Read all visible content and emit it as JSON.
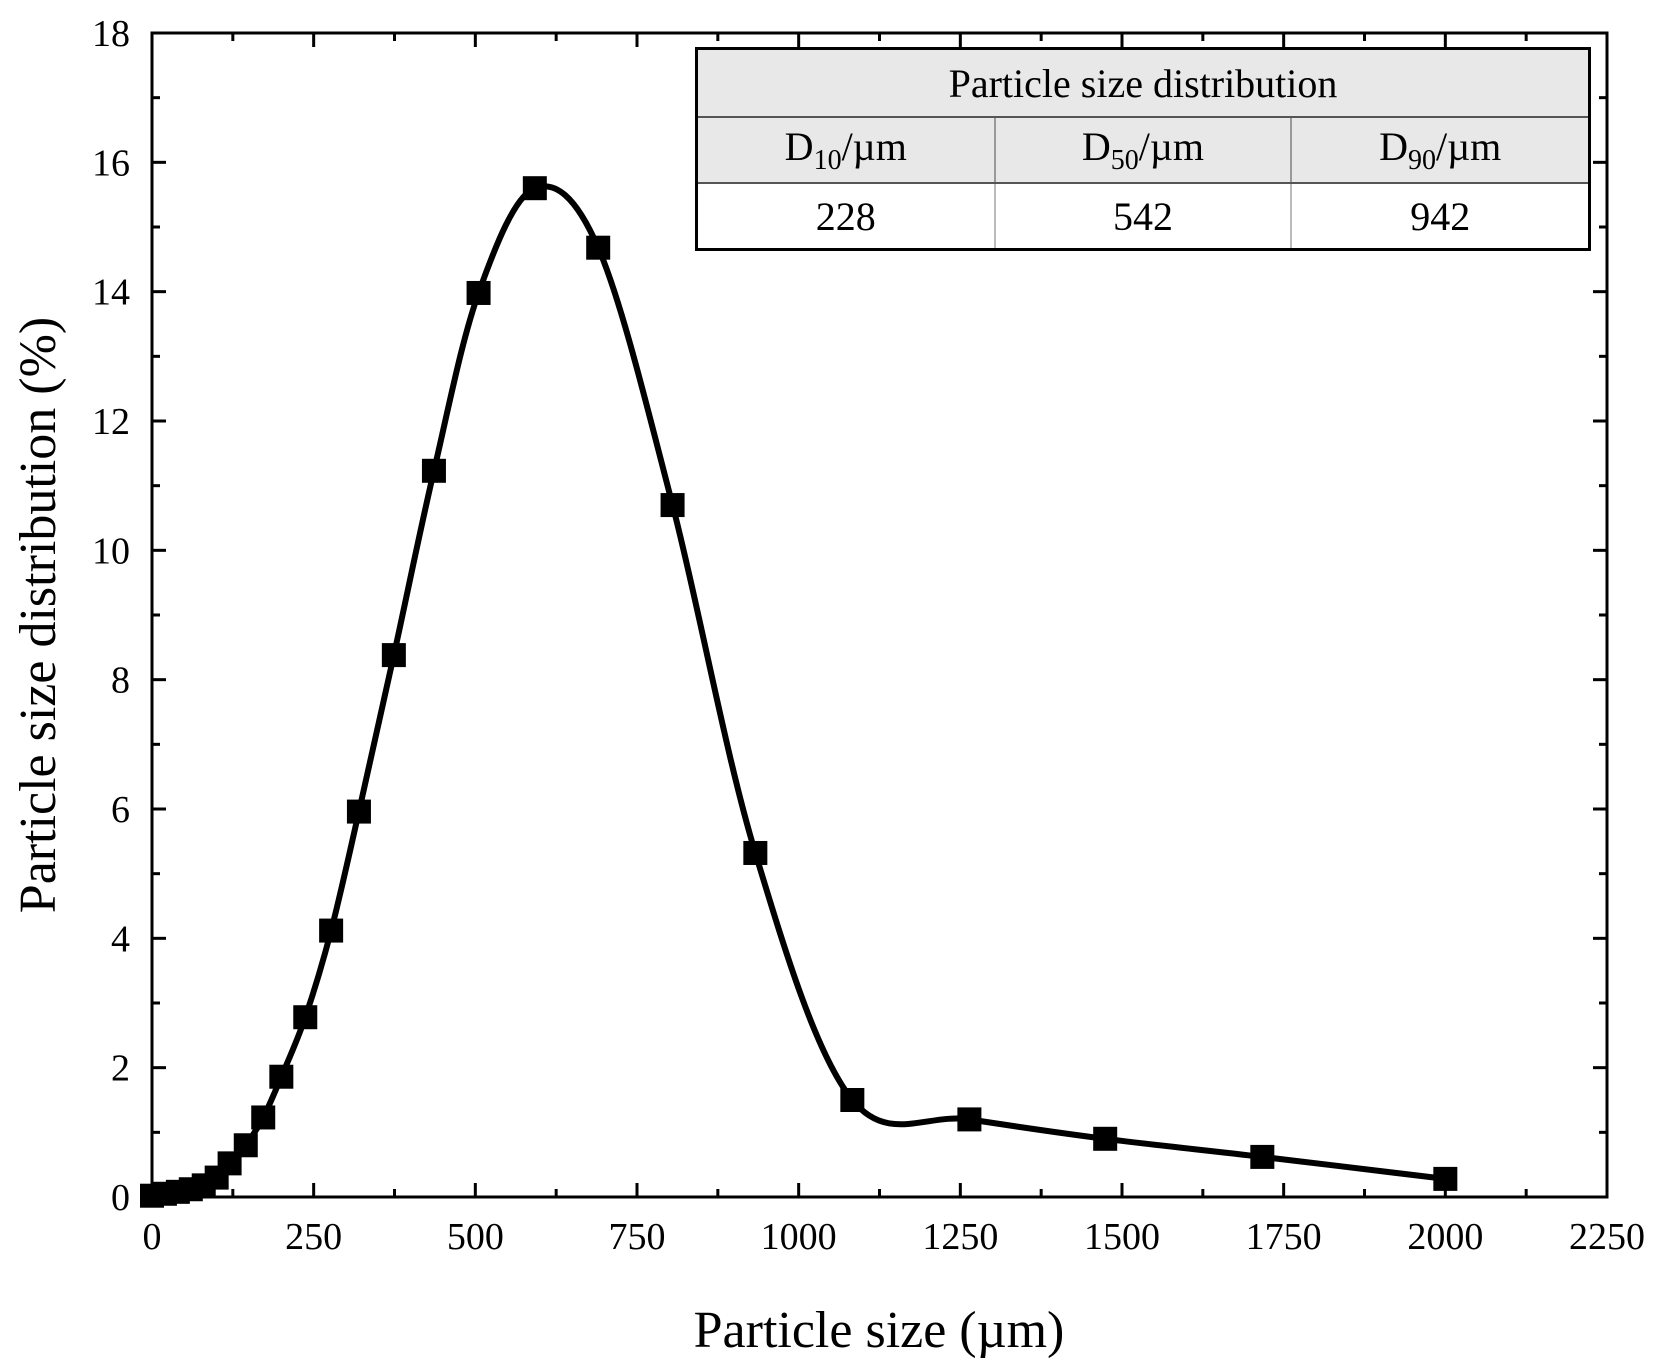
{
  "chart_data": {
    "type": "line",
    "xlabel": "Particle size (µm)",
    "ylabel": "Particle size distribution (%)",
    "xlim": [
      0,
      2250
    ],
    "ylim": [
      0,
      18
    ],
    "x_ticks": [
      "0",
      "250",
      "500",
      "750",
      "1000",
      "1250",
      "1500",
      "1750",
      "2000",
      "2250"
    ],
    "y_ticks": [
      "0",
      "2",
      "4",
      "6",
      "8",
      "10",
      "12",
      "14",
      "16",
      "18"
    ],
    "grid": false,
    "line_color": "#000000",
    "marker": "square",
    "series": [
      {
        "x": [
          0,
          20,
          40,
          60,
          80,
          100,
          120,
          145,
          172,
          200,
          237,
          277,
          320,
          374,
          436,
          505,
          592,
          690,
          805,
          933,
          1083,
          1264,
          1474,
          1717,
          2000
        ],
        "y": [
          0.02,
          0.05,
          0.08,
          0.12,
          0.18,
          0.3,
          0.52,
          0.8,
          1.23,
          1.86,
          2.78,
          4.12,
          5.96,
          8.38,
          11.23,
          13.98,
          15.6,
          14.68,
          10.7,
          5.32,
          1.5,
          1.2,
          0.9,
          0.62,
          0.28
        ]
      }
    ],
    "inset_table": {
      "title": "Particle size distribution",
      "headers": [
        {
          "main": "D",
          "sub": "10",
          "unit": "/µm"
        },
        {
          "main": "D",
          "sub": "50",
          "unit": "/µm"
        },
        {
          "main": "D",
          "sub": "90",
          "unit": "/µm"
        }
      ],
      "values": [
        "228",
        "542",
        "942"
      ]
    }
  }
}
